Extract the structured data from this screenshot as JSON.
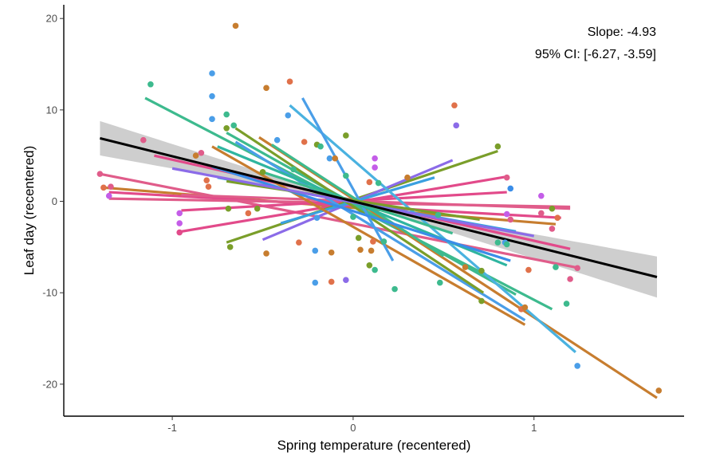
{
  "chart_data": {
    "type": "scatter",
    "xlabel": "Spring temperature (recentered)",
    "ylabel": "Leaf day (recentered)",
    "xlim": [
      -1.6,
      1.83
    ],
    "ylim": [
      -23.5,
      21.5
    ],
    "x_ticks": [
      -1,
      0,
      1
    ],
    "y_ticks": [
      -20,
      -10,
      0,
      10,
      20
    ],
    "x_tick_labels": [
      "-1",
      "0",
      "1"
    ],
    "y_tick_labels": [
      "-20",
      "-10",
      "0",
      "10",
      "20"
    ],
    "grid": false,
    "annotations": [
      "Slope: -4.93",
      "95% CI: [-6.27, -3.59]"
    ],
    "overall_fit": {
      "slope": -4.93,
      "ci_low": -6.27,
      "ci_high": -3.59,
      "x_range": [
        -1.4,
        1.68
      ],
      "color": "#000000",
      "band_color": "#bebebe"
    },
    "group_lines": [
      {
        "x0": -1.4,
        "y0": 3.0,
        "x1": 1.25,
        "y1": -7.3,
        "color": "#e05c8a"
      },
      {
        "x0": -1.38,
        "y0": 1.5,
        "x1": 1.12,
        "y1": -2.5,
        "color": "#c77d2f"
      },
      {
        "x0": -1.35,
        "y0": 1.0,
        "x1": 1.15,
        "y1": -1.8,
        "color": "#e24a8a"
      },
      {
        "x0": -1.35,
        "y0": 0.3,
        "x1": 1.2,
        "y1": -0.6,
        "color": "#e05c8a"
      },
      {
        "x0": -0.95,
        "y0": -3.3,
        "x1": 0.85,
        "y1": 2.7,
        "color": "#e24a8a"
      },
      {
        "x0": -0.95,
        "y0": -1.0,
        "x1": 0.85,
        "y1": 1.0,
        "color": "#e24a8a"
      },
      {
        "x0": -0.95,
        "y0": 0.7,
        "x1": 1.2,
        "y1": -0.8,
        "color": "#e05c8a"
      },
      {
        "x0": -0.7,
        "y0": -4.5,
        "x1": 0.8,
        "y1": 5.5,
        "color": "#7a9e2a"
      },
      {
        "x0": -0.5,
        "y0": -4.2,
        "x1": 0.55,
        "y1": 4.5,
        "color": "#8b6be8"
      },
      {
        "x0": -0.4,
        "y0": -2.4,
        "x1": 0.45,
        "y1": 2.6,
        "color": "#3aa0e0"
      },
      {
        "x0": -1.1,
        "y0": 5.0,
        "x1": 1.2,
        "y1": -5.2,
        "color": "#e24a8a"
      },
      {
        "x0": -1.15,
        "y0": 11.3,
        "x1": 1.1,
        "y1": -11.8,
        "color": "#3dba8e"
      },
      {
        "x0": -0.78,
        "y0": 6.0,
        "x1": 0.95,
        "y1": -13.5,
        "color": "#c77d2f"
      },
      {
        "x0": -0.7,
        "y0": 7.5,
        "x1": 0.9,
        "y1": -10.2,
        "color": "#3dba8e"
      },
      {
        "x0": -0.65,
        "y0": 6.5,
        "x1": 0.95,
        "y1": -13.0,
        "color": "#4a9ee8"
      },
      {
        "x0": -0.65,
        "y0": 8.0,
        "x1": 0.72,
        "y1": -10.0,
        "color": "#7a9e2a"
      },
      {
        "x0": -0.52,
        "y0": 7.0,
        "x1": 1.68,
        "y1": -21.5,
        "color": "#c77d2f"
      },
      {
        "x0": -0.35,
        "y0": 10.5,
        "x1": 1.23,
        "y1": -16.5,
        "color": "#4ab2e0"
      },
      {
        "x0": -0.28,
        "y0": 11.3,
        "x1": 0.22,
        "y1": -6.5,
        "color": "#4a9ee8"
      },
      {
        "x0": -0.45,
        "y0": 6.2,
        "x1": 0.5,
        "y1": -6.0,
        "color": "#3dba8e"
      },
      {
        "x0": -0.75,
        "y0": 6.0,
        "x1": 0.85,
        "y1": -7.0,
        "color": "#2fb5a0"
      },
      {
        "x0": -0.78,
        "y0": 3.8,
        "x1": 0.87,
        "y1": -6.5,
        "color": "#3a8de8"
      },
      {
        "x0": -0.75,
        "y0": 2.6,
        "x1": 0.9,
        "y1": -3.3,
        "color": "#3aa0e0"
      },
      {
        "x0": -0.5,
        "y0": 3.2,
        "x1": 0.55,
        "y1": -3.5,
        "color": "#3dba8e"
      },
      {
        "x0": -0.7,
        "y0": 2.2,
        "x1": 0.7,
        "y1": -2.0,
        "color": "#7a9e2a"
      },
      {
        "x0": -1.0,
        "y0": 3.6,
        "x1": 1.0,
        "y1": -3.8,
        "color": "#8b6be8"
      }
    ],
    "points": [
      {
        "x": -0.65,
        "y": 19.2,
        "color": "#c77d2f"
      },
      {
        "x": -0.78,
        "y": 14.0,
        "color": "#4a9ee8"
      },
      {
        "x": -1.12,
        "y": 12.8,
        "color": "#3dba8e"
      },
      {
        "x": -0.48,
        "y": 12.4,
        "color": "#c77d2f"
      },
      {
        "x": -0.35,
        "y": 13.1,
        "color": "#e0714a"
      },
      {
        "x": -0.78,
        "y": 11.5,
        "color": "#4a9ee8"
      },
      {
        "x": -0.78,
        "y": 9.0,
        "color": "#4a9ee8"
      },
      {
        "x": -0.7,
        "y": 9.5,
        "color": "#3dba8e"
      },
      {
        "x": -0.36,
        "y": 9.4,
        "color": "#4a9ee8"
      },
      {
        "x": 0.56,
        "y": 10.5,
        "color": "#e0714a"
      },
      {
        "x": 0.57,
        "y": 8.3,
        "color": "#8b6be8"
      },
      {
        "x": -0.66,
        "y": 8.3,
        "color": "#3dba8e"
      },
      {
        "x": -0.7,
        "y": 8.0,
        "color": "#7a9e2a"
      },
      {
        "x": -1.16,
        "y": 6.7,
        "color": "#e05c8a"
      },
      {
        "x": -0.42,
        "y": 6.7,
        "color": "#4a9ee8"
      },
      {
        "x": -0.27,
        "y": 6.5,
        "color": "#e0714a"
      },
      {
        "x": -0.2,
        "y": 6.2,
        "color": "#7a9e2a"
      },
      {
        "x": -0.18,
        "y": 6.0,
        "color": "#3dba8e"
      },
      {
        "x": -0.04,
        "y": 7.2,
        "color": "#7a9e2a"
      },
      {
        "x": -0.13,
        "y": 4.7,
        "color": "#4a9ee8"
      },
      {
        "x": -0.1,
        "y": 4.7,
        "color": "#c77d2f"
      },
      {
        "x": 0.12,
        "y": 4.7,
        "color": "#c45de8"
      },
      {
        "x": 0.12,
        "y": 3.7,
        "color": "#c45de8"
      },
      {
        "x": 0.8,
        "y": 6.0,
        "color": "#7a9e2a"
      },
      {
        "x": -0.84,
        "y": 5.3,
        "color": "#e05c8a"
      },
      {
        "x": -0.87,
        "y": 5.0,
        "color": "#c77d2f"
      },
      {
        "x": -0.33,
        "y": 3.5,
        "color": "#3dba8e"
      },
      {
        "x": -0.5,
        "y": 3.2,
        "color": "#7a9e2a"
      },
      {
        "x": -0.04,
        "y": 2.8,
        "color": "#3dba8e"
      },
      {
        "x": 0.3,
        "y": 2.6,
        "color": "#c77d2f"
      },
      {
        "x": 0.09,
        "y": 2.1,
        "color": "#e0714a"
      },
      {
        "x": 0.14,
        "y": 2.0,
        "color": "#3dba8e"
      },
      {
        "x": 0.85,
        "y": 2.6,
        "color": "#e05c8a"
      },
      {
        "x": 0.87,
        "y": 1.4,
        "color": "#3a8de8"
      },
      {
        "x": -0.8,
        "y": 1.6,
        "color": "#e0714a"
      },
      {
        "x": -0.81,
        "y": 2.3,
        "color": "#e0714a"
      },
      {
        "x": -1.4,
        "y": 3.0,
        "color": "#e05c8a"
      },
      {
        "x": -1.38,
        "y": 1.5,
        "color": "#e0714a"
      },
      {
        "x": -1.34,
        "y": 1.6,
        "color": "#e05c8a"
      },
      {
        "x": -1.35,
        "y": 0.6,
        "color": "#c45de8"
      },
      {
        "x": -0.69,
        "y": -0.8,
        "color": "#7a9e2a"
      },
      {
        "x": -0.53,
        "y": -0.8,
        "color": "#7a9e2a"
      },
      {
        "x": -0.58,
        "y": -1.3,
        "color": "#e0714a"
      },
      {
        "x": -0.2,
        "y": -1.8,
        "color": "#4a9ee8"
      },
      {
        "x": 0.0,
        "y": -1.7,
        "color": "#3dba8e"
      },
      {
        "x": -0.96,
        "y": -1.3,
        "color": "#c45de8"
      },
      {
        "x": -0.96,
        "y": -2.4,
        "color": "#c45de8"
      },
      {
        "x": -0.96,
        "y": -3.4,
        "color": "#e24a8a"
      },
      {
        "x": 1.04,
        "y": 0.6,
        "color": "#c45de8"
      },
      {
        "x": 1.1,
        "y": -0.8,
        "color": "#7a9e2a"
      },
      {
        "x": 0.85,
        "y": -1.4,
        "color": "#c45de8"
      },
      {
        "x": 0.87,
        "y": -2.0,
        "color": "#e05c8a"
      },
      {
        "x": 0.47,
        "y": -1.5,
        "color": "#3dba8e"
      },
      {
        "x": 1.13,
        "y": -1.8,
        "color": "#e0714a"
      },
      {
        "x": 1.1,
        "y": -3.0,
        "color": "#e05c8a"
      },
      {
        "x": 1.04,
        "y": -1.3,
        "color": "#e05c8a"
      },
      {
        "x": -0.68,
        "y": -5.0,
        "color": "#7a9e2a"
      },
      {
        "x": -0.48,
        "y": -5.7,
        "color": "#c77d2f"
      },
      {
        "x": -0.3,
        "y": -4.5,
        "color": "#e0714a"
      },
      {
        "x": -0.21,
        "y": -5.4,
        "color": "#4a9ee8"
      },
      {
        "x": -0.12,
        "y": -5.6,
        "color": "#c77d2f"
      },
      {
        "x": 0.03,
        "y": -4.0,
        "color": "#7a9e2a"
      },
      {
        "x": 0.04,
        "y": -5.3,
        "color": "#c77d2f"
      },
      {
        "x": 0.1,
        "y": -5.4,
        "color": "#c77d2f"
      },
      {
        "x": 0.11,
        "y": -4.4,
        "color": "#e0714a"
      },
      {
        "x": 0.17,
        "y": -4.4,
        "color": "#3dba8e"
      },
      {
        "x": 0.09,
        "y": -7.0,
        "color": "#7a9e2a"
      },
      {
        "x": 0.12,
        "y": -7.5,
        "color": "#3dba8e"
      },
      {
        "x": 0.62,
        "y": -7.2,
        "color": "#c77d2f"
      },
      {
        "x": 0.71,
        "y": -7.6,
        "color": "#7a9e2a"
      },
      {
        "x": 0.84,
        "y": -4.5,
        "color": "#4a9ee8"
      },
      {
        "x": 0.85,
        "y": -4.7,
        "color": "#3dba8e"
      },
      {
        "x": 0.8,
        "y": -4.5,
        "color": "#3dba8e"
      },
      {
        "x": 0.97,
        "y": -7.5,
        "color": "#e0714a"
      },
      {
        "x": 1.12,
        "y": -7.2,
        "color": "#3dba8e"
      },
      {
        "x": 1.2,
        "y": -8.5,
        "color": "#e05c8a"
      },
      {
        "x": 1.24,
        "y": -7.3,
        "color": "#e05c8a"
      },
      {
        "x": -0.21,
        "y": -8.9,
        "color": "#4a9ee8"
      },
      {
        "x": -0.12,
        "y": -8.8,
        "color": "#e0714a"
      },
      {
        "x": -0.04,
        "y": -8.6,
        "color": "#8b6be8"
      },
      {
        "x": 0.23,
        "y": -9.6,
        "color": "#3dba8e"
      },
      {
        "x": 0.48,
        "y": -8.9,
        "color": "#3dba8e"
      },
      {
        "x": 0.71,
        "y": -10.9,
        "color": "#7a9e2a"
      },
      {
        "x": 0.93,
        "y": -11.8,
        "color": "#e0714a"
      },
      {
        "x": 0.95,
        "y": -11.6,
        "color": "#c77d2f"
      },
      {
        "x": 1.18,
        "y": -11.2,
        "color": "#3dba8e"
      },
      {
        "x": 1.24,
        "y": -18.0,
        "color": "#4a9ee8"
      },
      {
        "x": 1.69,
        "y": -20.7,
        "color": "#c77d2f"
      }
    ]
  }
}
